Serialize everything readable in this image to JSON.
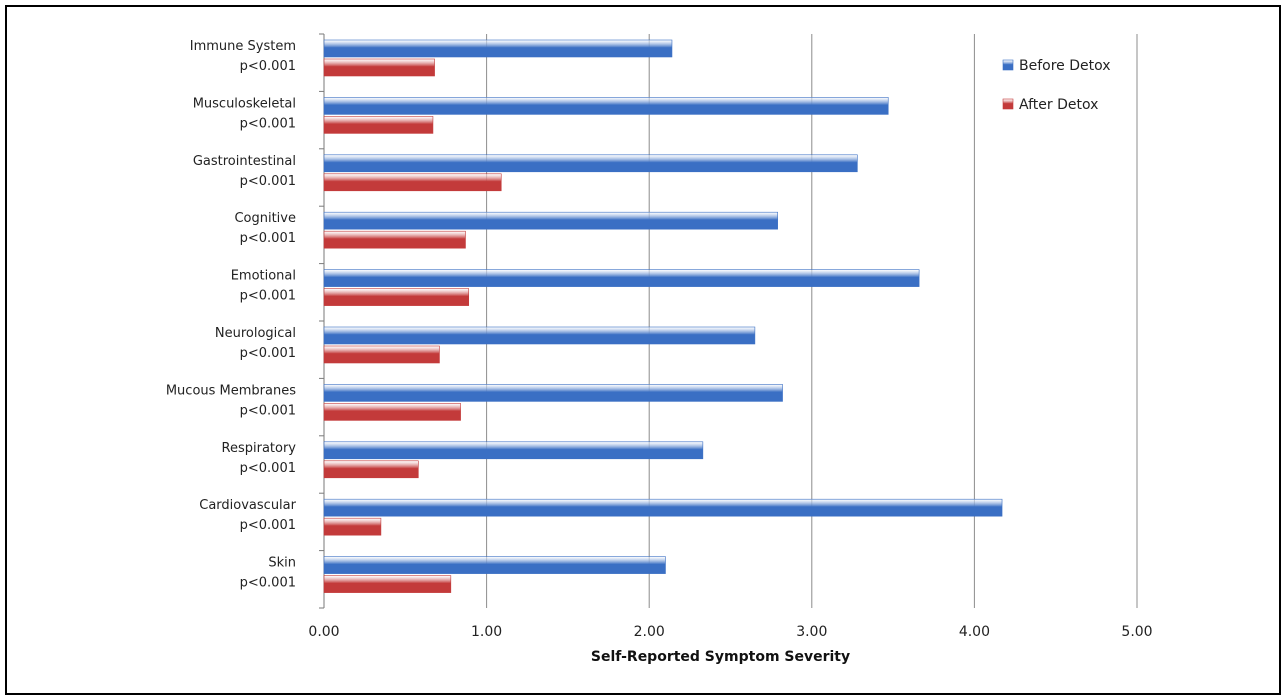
{
  "chart_data": {
    "type": "bar",
    "orientation": "horizontal",
    "categories": [
      "Immune System",
      "Musculoskeletal",
      "Gastrointestinal",
      "Cognitive",
      "Emotional",
      "Neurological",
      "Mucous Membranes",
      "Respiratory",
      "Cardiovascular",
      "Skin"
    ],
    "category_sublabels": [
      "p<0.001",
      "p<0.001",
      "p<0.001",
      "p<0.001",
      "p<0.001",
      "p<0.001",
      "p<0.001",
      "p<0.001",
      "p<0.001",
      "p<0.001"
    ],
    "series": [
      {
        "name": "Before Detox",
        "color": "#3A6FC4",
        "values": [
          2.14,
          3.47,
          3.28,
          2.79,
          3.66,
          2.65,
          2.82,
          2.33,
          4.17,
          2.1
        ]
      },
      {
        "name": "After Detox",
        "color": "#C33A3A",
        "values": [
          0.68,
          0.67,
          1.09,
          0.87,
          0.89,
          0.71,
          0.84,
          0.58,
          0.35,
          0.78
        ]
      }
    ],
    "xlabel": "Self-Reported Symptom Severity",
    "xlim": [
      0,
      5
    ],
    "xticks": [
      "0.00",
      "1.00",
      "2.00",
      "3.00",
      "4.00",
      "5.00"
    ],
    "grid": "vertical",
    "legend_position": "top-right"
  }
}
